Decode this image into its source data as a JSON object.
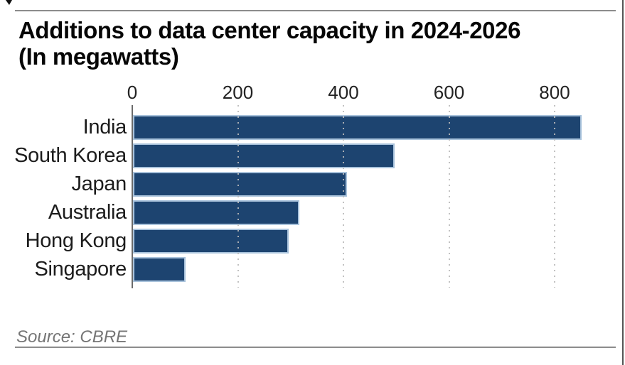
{
  "chart_data": {
    "type": "bar",
    "orientation": "horizontal",
    "title": "Additions to data center capacity in 2024-2026",
    "subtitle": "(In megawatts)",
    "source": "Source: CBRE",
    "categories": [
      "India",
      "South Korea",
      "Japan",
      "Australia",
      "Hong Kong",
      "Singapore"
    ],
    "values": [
      850,
      495,
      405,
      315,
      295,
      100
    ],
    "x_ticks": [
      0,
      200,
      400,
      600,
      800
    ],
    "xlim": [
      0,
      860
    ],
    "grid": "vertical-dotted",
    "legend": "none",
    "bar_color": "#1d4470",
    "bar_outline_color": "#a9c3dc",
    "axis_color": "#6b6b6b",
    "grid_color": "#bababa",
    "rule_color": "#8c8c8c",
    "title_color": "#060606",
    "label_color": "#1c1c1c",
    "source_color": "#757575"
  }
}
